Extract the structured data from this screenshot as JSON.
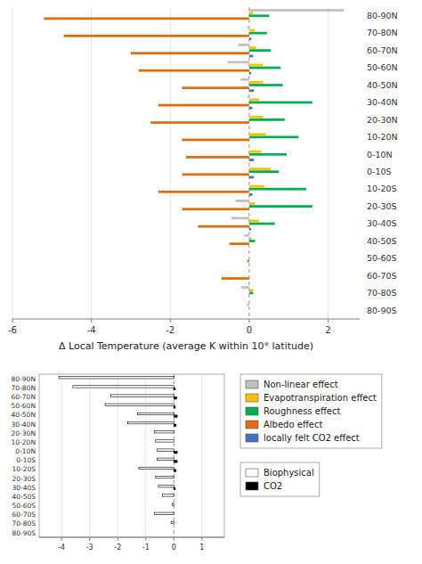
{
  "chart_data": [
    {
      "type": "bar",
      "orientation": "horizontal",
      "xlabel": "Δ Local Temperature (average K within 10° latitude)",
      "categories": [
        "80-90N",
        "70-80N",
        "60-70N",
        "50-60N",
        "40-50N",
        "30-40N",
        "20-30N",
        "10-20N",
        "0-10N",
        "0-10S",
        "10-20S",
        "20-30S",
        "30-40S",
        "40-50S",
        "50-60S",
        "60-70S",
        "70-80S",
        "80-90S"
      ],
      "series": [
        {
          "name": "Non-linear effect",
          "color": "#c0c0c0",
          "values": [
            2.4,
            -0.05,
            -0.28,
            -0.55,
            -0.22,
            -0.05,
            0.0,
            0.0,
            0.0,
            0.0,
            0.0,
            -0.35,
            -0.45,
            -0.12,
            0.0,
            0.0,
            -0.2,
            -0.05
          ]
        },
        {
          "name": "Evapotranspiration effect",
          "color": "#ffc000",
          "values": [
            0.1,
            0.15,
            0.18,
            0.35,
            0.35,
            0.25,
            0.35,
            0.42,
            0.3,
            0.55,
            0.38,
            0.15,
            0.25,
            0.05,
            0.0,
            0.0,
            0.1,
            0.0
          ]
        },
        {
          "name": "Roughness effect",
          "color": "#00b050",
          "values": [
            0.5,
            0.45,
            0.55,
            0.8,
            0.85,
            1.6,
            0.9,
            1.25,
            0.95,
            0.75,
            1.45,
            1.6,
            0.65,
            0.15,
            0.0,
            0.0,
            0.1,
            0.0
          ]
        },
        {
          "name": "Albedo effect",
          "color": "#e36c09",
          "values": [
            -5.2,
            -4.7,
            -3.0,
            -2.8,
            -1.7,
            -2.3,
            -2.5,
            -1.7,
            -1.6,
            -1.7,
            -2.3,
            -1.7,
            -1.3,
            -0.5,
            -0.05,
            -0.7,
            0.0,
            0.0
          ]
        },
        {
          "name": "locally felt CO2 effect",
          "color": "#4472c4",
          "values": [
            0.0,
            0.05,
            0.1,
            0.05,
            0.12,
            0.08,
            0.0,
            0.0,
            0.12,
            0.12,
            0.08,
            0.0,
            0.05,
            0.0,
            0.0,
            0.0,
            0.0,
            0.0
          ]
        }
      ],
      "xlim": [
        -6,
        2.8
      ],
      "xticks": [
        -6,
        -4,
        -2,
        0,
        2
      ],
      "grid": true
    },
    {
      "type": "bar",
      "orientation": "horizontal",
      "categories": [
        "80-90N",
        "70-80N",
        "60-70N",
        "50-60N",
        "40-50N",
        "30-40N",
        "20-30N",
        "10-20N",
        "0-10N",
        "0-10S",
        "10-20S",
        "20-30S",
        "30-40S",
        "40-50S",
        "50-60S",
        "60-70S",
        "70-80S",
        "80-90S"
      ],
      "series": [
        {
          "name": "Biophysical",
          "color": "#ffffff",
          "values": [
            -4.1,
            -3.6,
            -2.25,
            -2.45,
            -1.3,
            -1.65,
            -0.7,
            -0.65,
            -0.6,
            -0.6,
            -1.25,
            -0.65,
            -0.55,
            -0.4,
            -0.05,
            -0.7,
            -0.1,
            0.0
          ]
        },
        {
          "name": "CO2",
          "color": "#000000",
          "values": [
            0.0,
            0.05,
            0.1,
            0.05,
            0.12,
            0.08,
            0.0,
            0.0,
            0.12,
            0.12,
            0.08,
            0.0,
            0.05,
            0.0,
            0.0,
            0.0,
            0.0,
            0.0
          ]
        }
      ],
      "xlim": [
        -4.8,
        1.8
      ],
      "xticks": [
        -4,
        -3,
        -2,
        -1,
        0,
        1
      ],
      "grid": true
    }
  ]
}
